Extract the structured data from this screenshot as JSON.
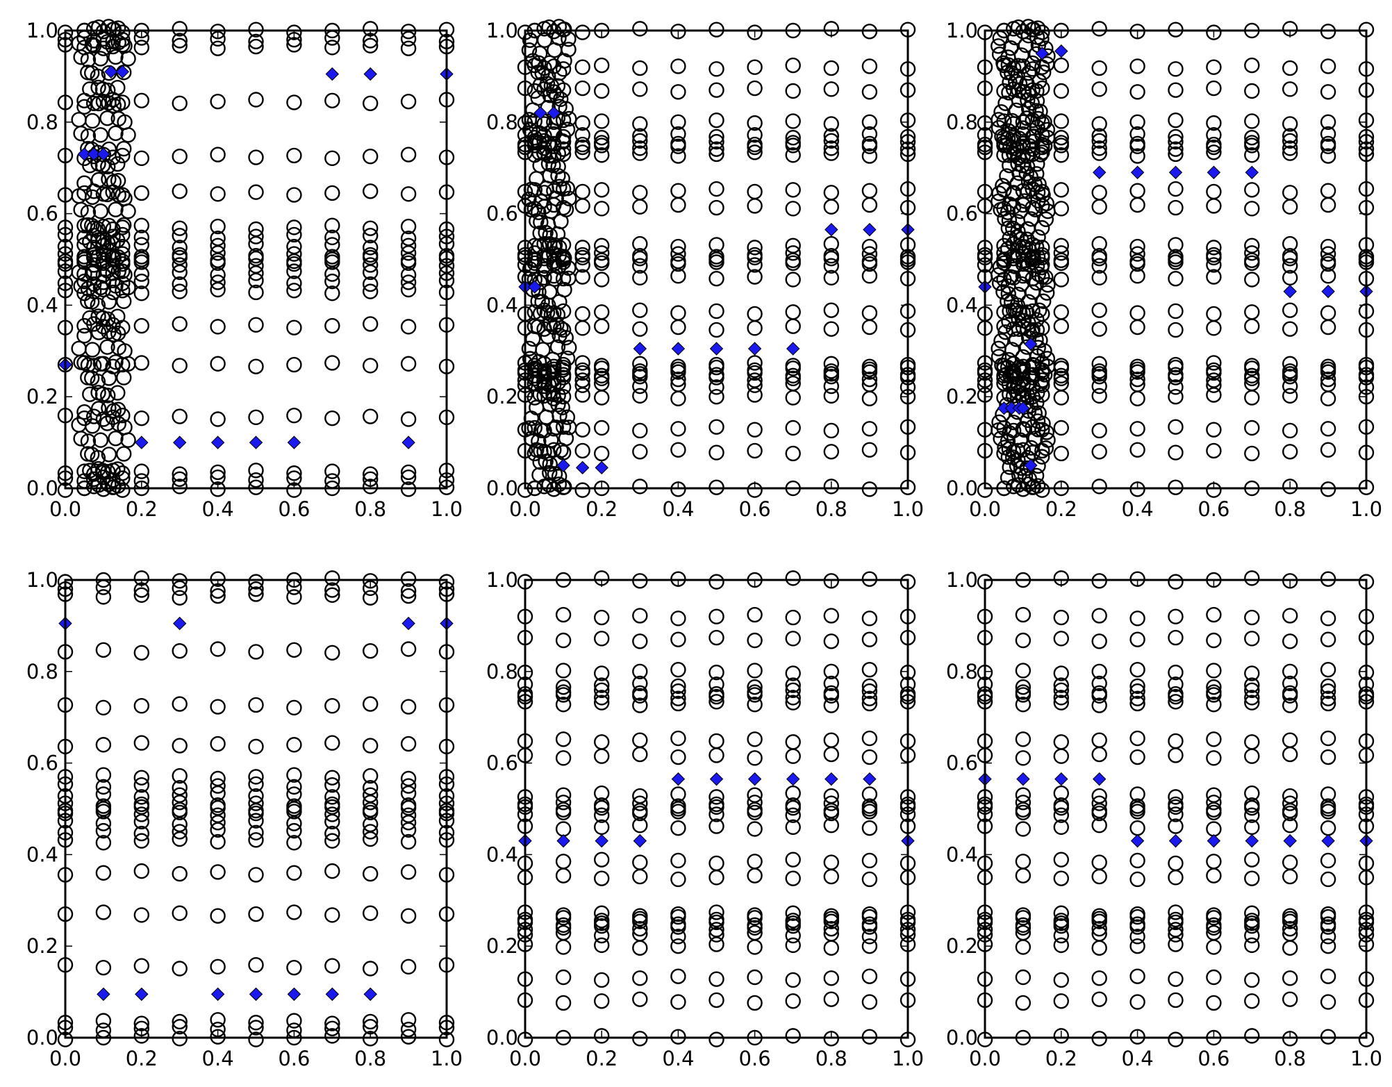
{
  "chart_data": [
    {
      "type": "scatter",
      "xlim": [
        0,
        1
      ],
      "ylim": [
        0,
        1
      ],
      "xticks": [
        "0.0",
        "0.2",
        "0.4",
        "0.6",
        "0.8",
        "1.0"
      ],
      "yticks": [
        "0.0",
        "0.2",
        "0.4",
        "0.6",
        "0.8",
        "1.0"
      ],
      "circle_x": [
        0,
        0.05,
        0.075,
        0.1,
        0.125,
        0.15,
        0.2,
        0.3,
        0.4,
        0.5,
        0.6,
        0.7,
        0.8,
        0.9,
        1.0
      ],
      "circle_y": [
        0,
        0.02,
        0.035,
        0.155,
        0.27,
        0.355,
        0.43,
        0.45,
        0.47,
        0.49,
        0.5,
        0.51,
        0.53,
        0.55,
        0.57,
        0.645,
        0.725,
        0.845,
        0.965,
        0.98,
        1.0
      ],
      "wave": {
        "x": [
          0.05,
          0.075,
          0.1,
          0.125,
          0.15
        ],
        "count": 30
      },
      "diamonds": [
        [
          0.12,
          0.91
        ],
        [
          0.15,
          0.91
        ],
        [
          0.7,
          0.905
        ],
        [
          0.8,
          0.905
        ],
        [
          1.0,
          0.905
        ],
        [
          0.05,
          0.73
        ],
        [
          0.075,
          0.73
        ],
        [
          0.1,
          0.73
        ],
        [
          0,
          0.27
        ],
        [
          0.2,
          0.1
        ],
        [
          0.3,
          0.1
        ],
        [
          0.4,
          0.1
        ],
        [
          0.5,
          0.1
        ],
        [
          0.6,
          0.1
        ],
        [
          0.9,
          0.1
        ]
      ]
    },
    {
      "type": "scatter",
      "xlim": [
        0,
        1
      ],
      "ylim": [
        0,
        1
      ],
      "xticks": [
        "0.0",
        "0.2",
        "0.4",
        "0.6",
        "0.8",
        "1.0"
      ],
      "yticks": [
        "0.0",
        "0.2",
        "0.4",
        "0.6",
        "0.8",
        "1.0"
      ],
      "circle_x": [
        0,
        0.025,
        0.05,
        0.075,
        0.1,
        0.15,
        0.2,
        0.3,
        0.4,
        0.5,
        0.6,
        0.7,
        0.8,
        0.9,
        1.0
      ],
      "circle_y": [
        0,
        0.08,
        0.13,
        0.2,
        0.225,
        0.24,
        0.25,
        0.26,
        0.27,
        0.35,
        0.385,
        0.46,
        0.49,
        0.5,
        0.51,
        0.53,
        0.615,
        0.65,
        0.73,
        0.745,
        0.755,
        0.77,
        0.8,
        0.87,
        0.92,
        1.0
      ],
      "wave": {
        "x": [
          0.025,
          0.05,
          0.075,
          0.1
        ],
        "count": 40
      },
      "diamonds": [
        [
          0.04,
          0.82
        ],
        [
          0.075,
          0.82
        ],
        [
          0,
          0.44
        ],
        [
          0.025,
          0.44
        ],
        [
          0.8,
          0.565
        ],
        [
          0.9,
          0.565
        ],
        [
          1.0,
          0.565
        ],
        [
          0.3,
          0.305
        ],
        [
          0.4,
          0.305
        ],
        [
          0.5,
          0.305
        ],
        [
          0.6,
          0.305
        ],
        [
          0.7,
          0.305
        ],
        [
          0.1,
          0.05
        ],
        [
          0.15,
          0.045
        ],
        [
          0.2,
          0.045
        ]
      ]
    },
    {
      "type": "scatter",
      "xlim": [
        0,
        1
      ],
      "ylim": [
        0,
        1
      ],
      "xticks": [
        "0.0",
        "0.2",
        "0.4",
        "0.6",
        "0.8",
        "1.0"
      ],
      "yticks": [
        "0.0",
        "0.2",
        "0.4",
        "0.6",
        "0.8",
        "1.0"
      ],
      "circle_x": [
        0,
        0.05,
        0.075,
        0.1,
        0.125,
        0.15,
        0.2,
        0.3,
        0.4,
        0.5,
        0.6,
        0.7,
        0.8,
        0.9,
        1.0
      ],
      "circle_y": [
        0,
        0.08,
        0.13,
        0.2,
        0.225,
        0.24,
        0.25,
        0.26,
        0.27,
        0.35,
        0.385,
        0.46,
        0.49,
        0.5,
        0.51,
        0.53,
        0.615,
        0.65,
        0.73,
        0.745,
        0.755,
        0.77,
        0.8,
        0.87,
        0.92,
        1.0
      ],
      "wave": {
        "x": [
          0.05,
          0.075,
          0.1,
          0.125,
          0.15
        ],
        "count": 50
      },
      "diamonds": [
        [
          0.15,
          0.95
        ],
        [
          0.2,
          0.955
        ],
        [
          0.3,
          0.69
        ],
        [
          0.4,
          0.69
        ],
        [
          0.5,
          0.69
        ],
        [
          0.6,
          0.69
        ],
        [
          0.7,
          0.69
        ],
        [
          0,
          0.44
        ],
        [
          0.8,
          0.43
        ],
        [
          0.9,
          0.43
        ],
        [
          1.0,
          0.43
        ],
        [
          0.12,
          0.315
        ],
        [
          0.05,
          0.175
        ],
        [
          0.07,
          0.175
        ],
        [
          0.09,
          0.175
        ],
        [
          0.1,
          0.175
        ],
        [
          0.12,
          0.05
        ]
      ]
    },
    {
      "type": "scatter",
      "xlim": [
        0,
        1
      ],
      "ylim": [
        0,
        1
      ],
      "xticks": [
        "0.0",
        "0.2",
        "0.4",
        "0.6",
        "0.8",
        "1.0"
      ],
      "yticks": [
        "0.0",
        "0.2",
        "0.4",
        "0.6",
        "0.8",
        "1.0"
      ],
      "circle_x": [
        0,
        0.1,
        0.2,
        0.3,
        0.4,
        0.5,
        0.6,
        0.7,
        0.8,
        0.9,
        1.0
      ],
      "circle_y": [
        0,
        0.02,
        0.035,
        0.155,
        0.27,
        0.36,
        0.43,
        0.45,
        0.47,
        0.49,
        0.5,
        0.51,
        0.53,
        0.55,
        0.57,
        0.64,
        0.725,
        0.845,
        0.965,
        0.98,
        1.0
      ],
      "wave": null,
      "diamonds": [
        [
          0,
          0.905
        ],
        [
          0.3,
          0.905
        ],
        [
          0.9,
          0.905
        ],
        [
          1.0,
          0.905
        ],
        [
          0.1,
          0.095
        ],
        [
          0.2,
          0.095
        ],
        [
          0.4,
          0.095
        ],
        [
          0.5,
          0.095
        ],
        [
          0.6,
          0.095
        ],
        [
          0.7,
          0.095
        ],
        [
          0.8,
          0.095
        ]
      ]
    },
    {
      "type": "scatter",
      "xlim": [
        0,
        1
      ],
      "ylim": [
        0,
        1
      ],
      "xticks": [
        "0.0",
        "0.2",
        "0.4",
        "0.6",
        "0.8",
        "1.0"
      ],
      "yticks": [
        "0.0",
        "0.2",
        "0.4",
        "0.6",
        "0.8",
        "1.0"
      ],
      "circle_x": [
        0,
        0.1,
        0.2,
        0.3,
        0.4,
        0.5,
        0.6,
        0.7,
        0.8,
        0.9,
        1.0
      ],
      "circle_y": [
        0,
        0.08,
        0.13,
        0.2,
        0.225,
        0.24,
        0.25,
        0.26,
        0.27,
        0.35,
        0.385,
        0.46,
        0.49,
        0.5,
        0.51,
        0.53,
        0.615,
        0.65,
        0.73,
        0.745,
        0.755,
        0.77,
        0.8,
        0.87,
        0.92,
        1.0
      ],
      "wave": null,
      "diamonds": [
        [
          0.4,
          0.565
        ],
        [
          0.5,
          0.565
        ],
        [
          0.6,
          0.565
        ],
        [
          0.7,
          0.565
        ],
        [
          0.8,
          0.565
        ],
        [
          0.9,
          0.565
        ],
        [
          0,
          0.43
        ],
        [
          0.1,
          0.43
        ],
        [
          0.2,
          0.43
        ],
        [
          0.3,
          0.43
        ],
        [
          1.0,
          0.43
        ]
      ]
    },
    {
      "type": "scatter",
      "xlim": [
        0,
        1
      ],
      "ylim": [
        0,
        1
      ],
      "xticks": [
        "0.0",
        "0.2",
        "0.4",
        "0.6",
        "0.8",
        "1.0"
      ],
      "yticks": [
        "0.0",
        "0.2",
        "0.4",
        "0.6",
        "0.8",
        "1.0"
      ],
      "circle_x": [
        0,
        0.1,
        0.2,
        0.3,
        0.4,
        0.5,
        0.6,
        0.7,
        0.8,
        0.9,
        1.0
      ],
      "circle_y": [
        0,
        0.08,
        0.13,
        0.2,
        0.225,
        0.24,
        0.25,
        0.26,
        0.27,
        0.35,
        0.385,
        0.46,
        0.49,
        0.5,
        0.51,
        0.53,
        0.615,
        0.65,
        0.73,
        0.745,
        0.755,
        0.77,
        0.8,
        0.87,
        0.92,
        1.0
      ],
      "wave": null,
      "diamonds": [
        [
          0,
          0.565
        ],
        [
          0.1,
          0.565
        ],
        [
          0.2,
          0.565
        ],
        [
          0.3,
          0.565
        ],
        [
          0.4,
          0.43
        ],
        [
          0.5,
          0.43
        ],
        [
          0.6,
          0.43
        ],
        [
          0.7,
          0.43
        ],
        [
          0.8,
          0.43
        ],
        [
          0.9,
          0.43
        ],
        [
          1.0,
          0.43
        ]
      ]
    }
  ],
  "colors": {
    "diamond": "#1a1aee",
    "circle": "#000000"
  }
}
